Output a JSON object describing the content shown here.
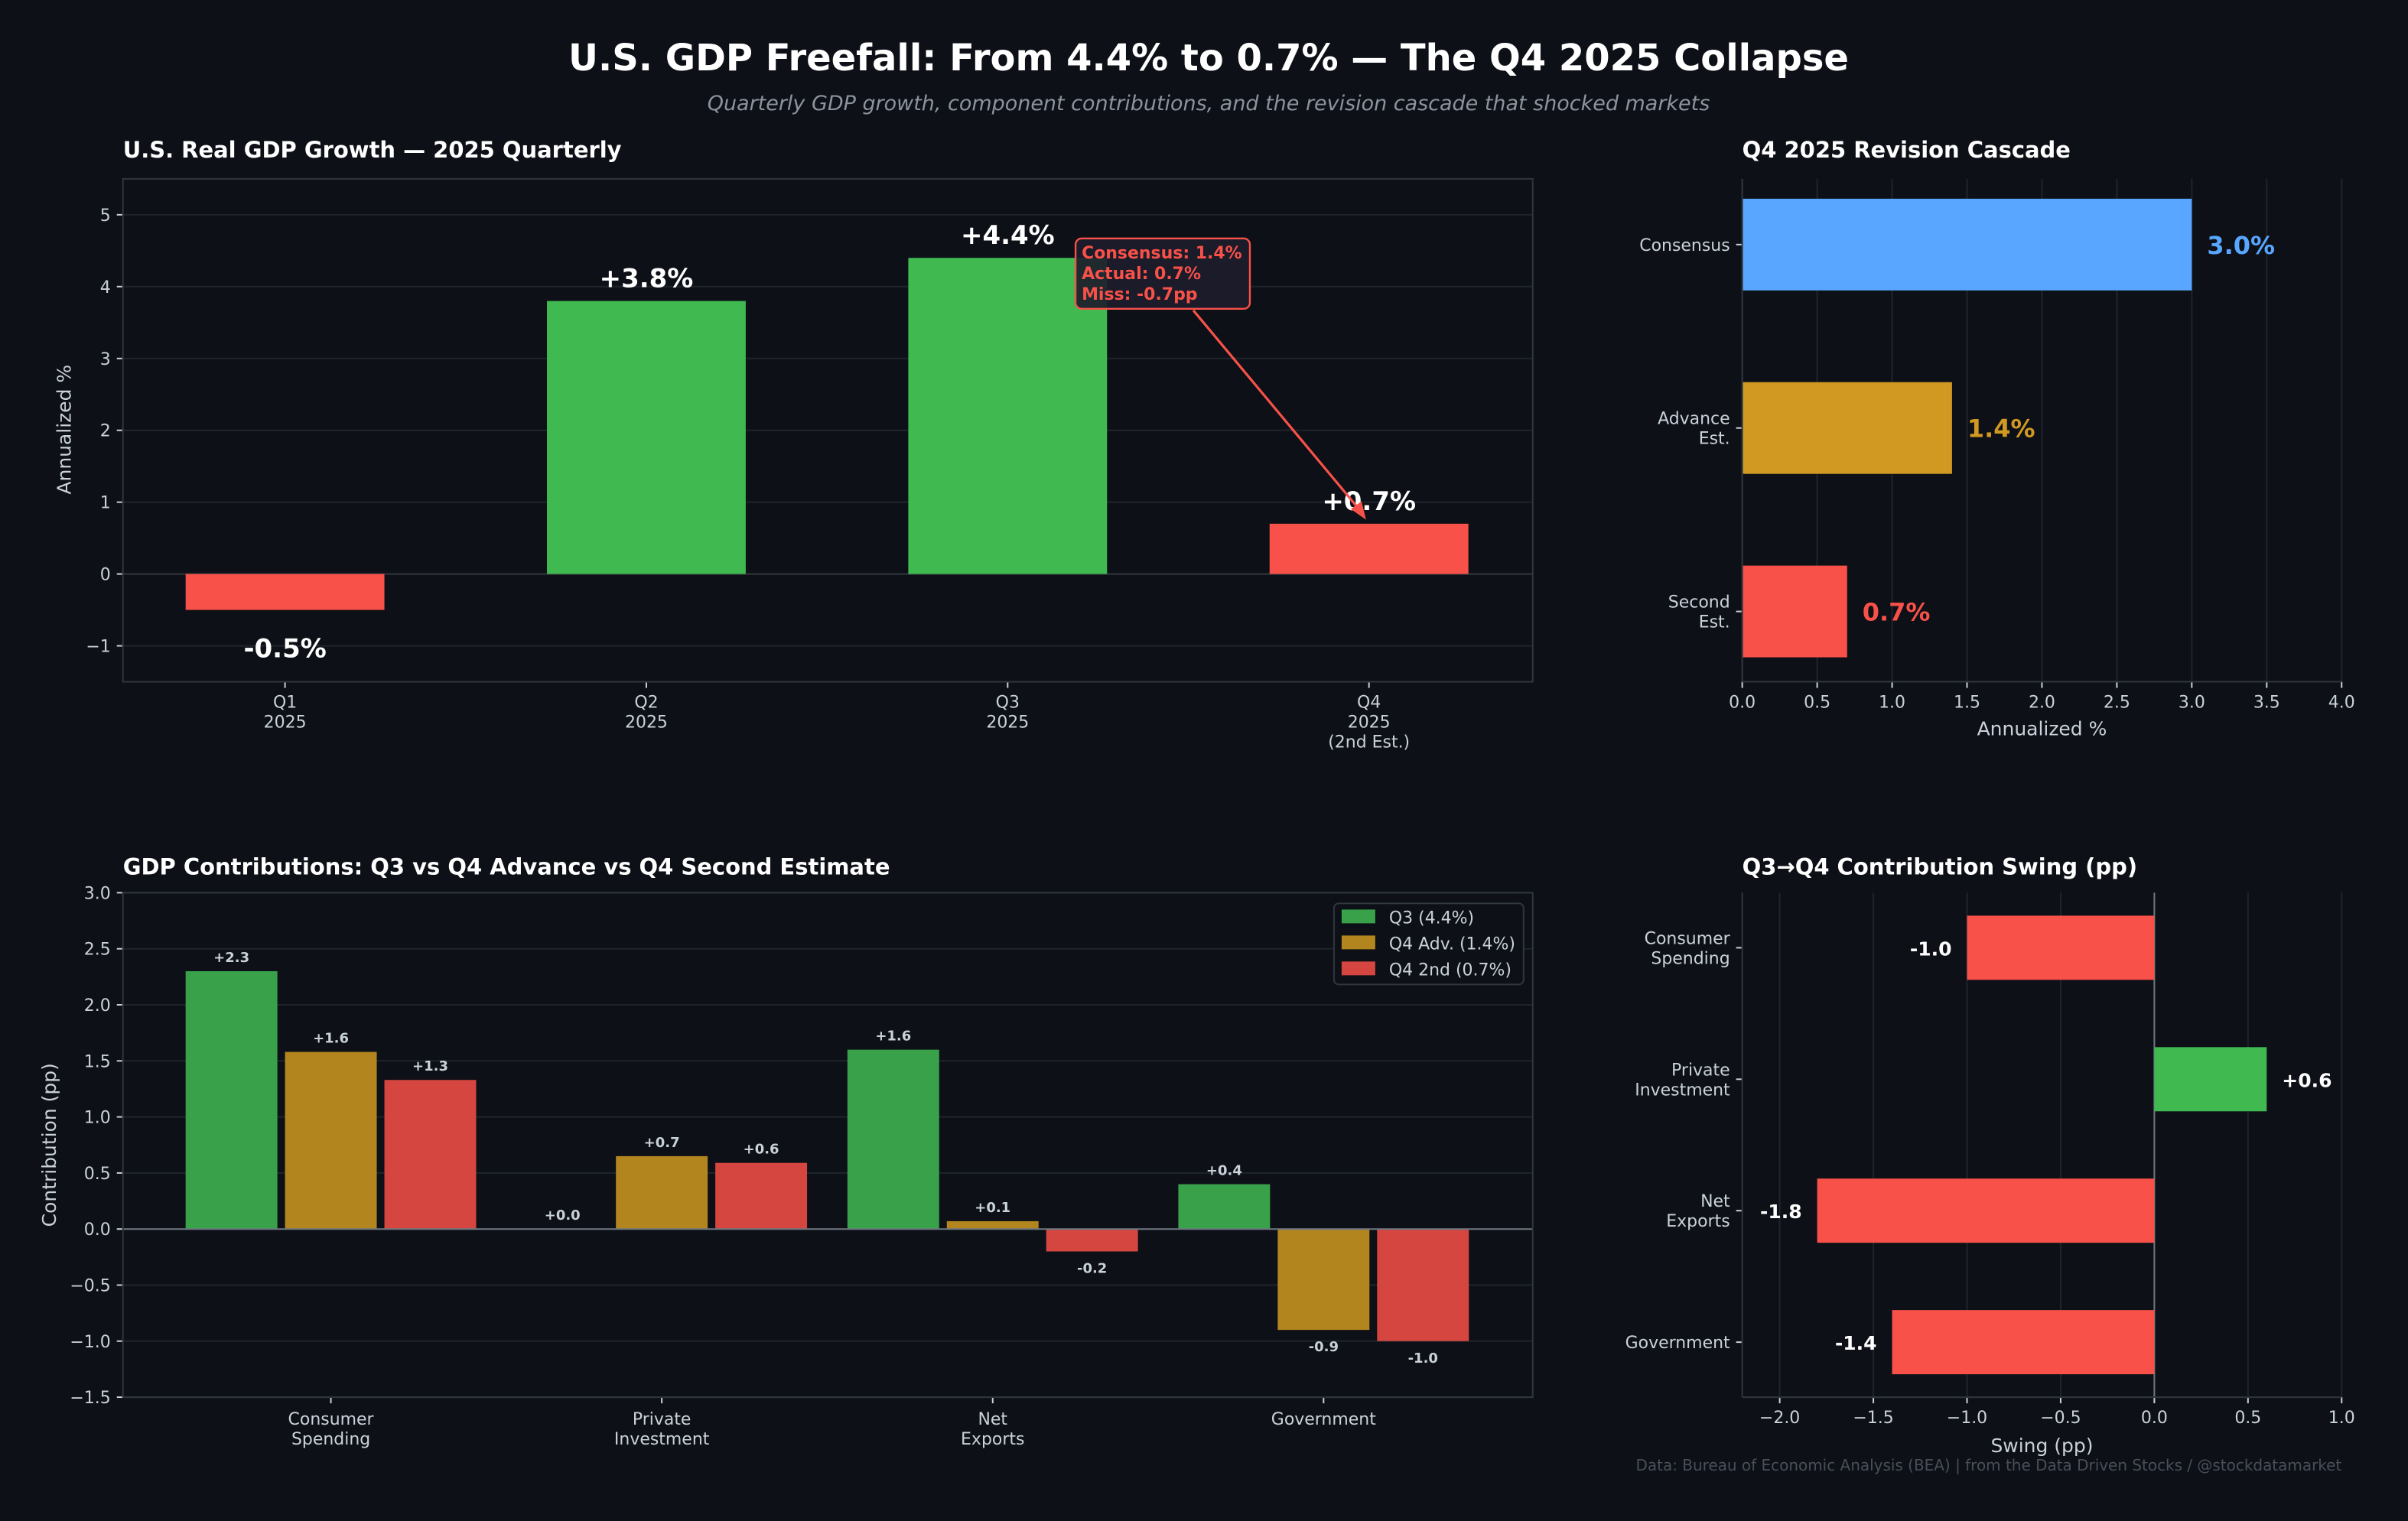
{
  "title": "U.S. GDP Freefall: From 4.4% to 0.7% — The Q4 2025 Collapse",
  "subtitle": "Quarterly GDP growth, component contributions, and the revision cascade that shocked markets",
  "footer": "Data: Bureau of Economic Analysis (BEA) | from the Data Driven Stocks / @stockdatamarket",
  "colors": {
    "background": "#0d1017",
    "green": "#3fb950",
    "red": "#f85149",
    "blue": "#58a6ff",
    "gold": "#d29922",
    "green_muted": "#38a14a",
    "gold_muted": "#b3851f",
    "red_muted": "#d4463f"
  },
  "chart_data": [
    {
      "type": "bar",
      "title": "U.S. Real GDP Growth — 2025 Quarterly",
      "ylabel": "Annualized %",
      "xlabel": "",
      "categories": [
        [
          "Q1",
          "2025"
        ],
        [
          "Q2",
          "2025"
        ],
        [
          "Q3",
          "2025"
        ],
        [
          "Q4",
          "2025",
          "(2nd Est.)"
        ]
      ],
      "values": [
        -0.5,
        3.8,
        4.4,
        0.7
      ],
      "data_labels": [
        "-0.5%",
        "+3.8%",
        "+4.4%",
        "+0.7%"
      ],
      "bar_colors": [
        "red",
        "green",
        "green",
        "red"
      ],
      "ylim": [
        -1.5,
        5.5
      ],
      "yticks": [
        -1,
        0,
        1,
        2,
        3,
        4,
        5
      ],
      "ytick_labels": [
        "−1",
        "0",
        "1",
        "2",
        "3",
        "4",
        "5"
      ],
      "grid": true,
      "annotation": {
        "lines": [
          "Consensus: 1.4%",
          "Actual: 0.7%",
          "Miss: -0.7pp"
        ],
        "points_to": "Q4"
      }
    },
    {
      "type": "bar",
      "orientation": "horizontal",
      "title": "Q4 2025 Revision Cascade",
      "xlabel": "Annualized %",
      "categories": [
        [
          "Consensus"
        ],
        [
          "Advance",
          "Est."
        ],
        [
          "Second",
          "Est."
        ]
      ],
      "values": [
        3.0,
        1.4,
        0.7
      ],
      "data_labels": [
        "3.0%",
        "1.4%",
        "0.7%"
      ],
      "bar_colors": [
        "blue",
        "gold",
        "red"
      ],
      "xlim": [
        0,
        4.0
      ],
      "xticks": [
        0,
        0.5,
        1,
        1.5,
        2,
        2.5,
        3,
        3.5,
        4
      ],
      "xtick_labels": [
        "0.0",
        "0.5",
        "1.0",
        "1.5",
        "2.0",
        "2.5",
        "3.0",
        "3.5",
        "4.0"
      ],
      "grid": true
    },
    {
      "type": "bar",
      "title": "GDP Contributions: Q3 vs Q4 Advance vs Q4 Second Estimate",
      "ylabel": "Contribution (pp)",
      "categories": [
        [
          "Consumer",
          "Spending"
        ],
        [
          "Private",
          "Investment"
        ],
        [
          "Net",
          "Exports"
        ],
        [
          "Government"
        ]
      ],
      "series": [
        {
          "name": "Q3 (4.4%)",
          "color": "green_muted",
          "values": [
            2.3,
            0.0,
            1.6,
            0.4
          ],
          "labels": [
            "+2.3",
            "+0.0",
            "+1.6",
            "+0.4"
          ]
        },
        {
          "name": "Q4 Adv. (1.4%)",
          "color": "gold_muted",
          "values": [
            1.58,
            0.65,
            0.07,
            -0.9
          ],
          "labels": [
            "+1.6",
            "+0.7",
            "+0.1",
            "-0.9"
          ]
        },
        {
          "name": "Q4 2nd (0.7%)",
          "color": "red_muted",
          "values": [
            1.33,
            0.59,
            -0.2,
            -1.0
          ],
          "labels": [
            "+1.3",
            "+0.6",
            "-0.2",
            "-1.0"
          ]
        }
      ],
      "ylim": [
        -1.5,
        3.0
      ],
      "yticks": [
        -1.5,
        -1,
        -0.5,
        0,
        0.5,
        1,
        1.5,
        2,
        2.5,
        3
      ],
      "ytick_labels": [
        "−1.5",
        "−1.0",
        "−0.5",
        "0.0",
        "0.5",
        "1.0",
        "1.5",
        "2.0",
        "2.5",
        "3.0"
      ],
      "legend": "top-right",
      "grid": true
    },
    {
      "type": "bar",
      "orientation": "horizontal",
      "title": "Q3→Q4 Contribution Swing (pp)",
      "xlabel": "Swing (pp)",
      "categories": [
        [
          "Consumer",
          "Spending"
        ],
        [
          "Private",
          "Investment"
        ],
        [
          "Net",
          "Exports"
        ],
        [
          "Government"
        ]
      ],
      "values": [
        -1.0,
        0.6,
        -1.8,
        -1.4
      ],
      "data_labels": [
        "-1.0",
        "+0.6",
        "-1.8",
        "-1.4"
      ],
      "xlim": [
        -2.2,
        1.0
      ],
      "xticks": [
        -2,
        -1.5,
        -1,
        -0.5,
        0,
        0.5,
        1
      ],
      "xtick_labels": [
        "−2.0",
        "−1.5",
        "−1.0",
        "−0.5",
        "0.0",
        "0.5",
        "1.0"
      ],
      "grid": true
    }
  ]
}
